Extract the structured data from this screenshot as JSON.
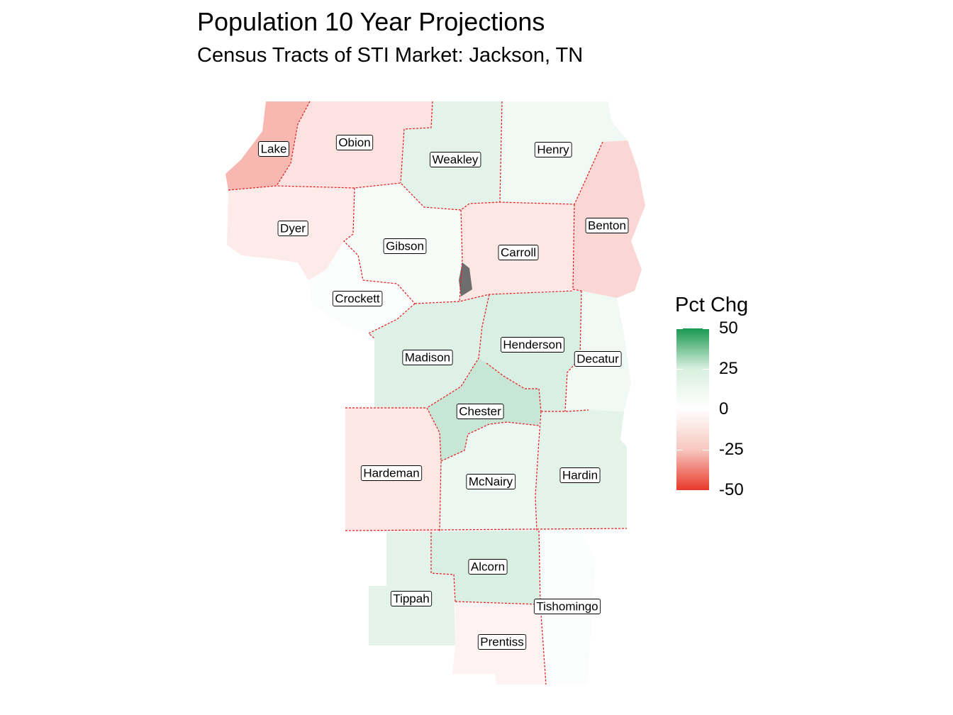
{
  "title": "Population 10 Year Projections",
  "subtitle": "Census Tracts of STI Market: Jackson, TN",
  "legend": {
    "title": "Pct Chg",
    "ticks": [
      "50",
      "25",
      "0",
      "-25",
      "-50"
    ],
    "range": [
      -50,
      50
    ],
    "colors": {
      "high": "#1a9850",
      "mid": "#ffffff",
      "low": "#e8392a"
    }
  },
  "county_border_color": "#e41a1c",
  "no_data_color": "#6e6e6e",
  "counties": [
    {
      "name": "Lake",
      "pct_chg": -18
    },
    {
      "name": "Obion",
      "pct_chg": -7
    },
    {
      "name": "Weakley",
      "pct_chg": 6
    },
    {
      "name": "Henry",
      "pct_chg": 3
    },
    {
      "name": "Dyer",
      "pct_chg": -5
    },
    {
      "name": "Gibson",
      "pct_chg": 2
    },
    {
      "name": "Carroll",
      "pct_chg": -6
    },
    {
      "name": "Benton",
      "pct_chg": -10
    },
    {
      "name": "Crockett",
      "pct_chg": 1
    },
    {
      "name": "Madison",
      "pct_chg": 7
    },
    {
      "name": "Henderson",
      "pct_chg": 8
    },
    {
      "name": "Decatur",
      "pct_chg": 3
    },
    {
      "name": "Chester",
      "pct_chg": 12
    },
    {
      "name": "Hardeman",
      "pct_chg": -6
    },
    {
      "name": "McNairy",
      "pct_chg": 4
    },
    {
      "name": "Hardin",
      "pct_chg": 6
    },
    {
      "name": "Alcorn",
      "pct_chg": 8
    },
    {
      "name": "Tippah",
      "pct_chg": 6
    },
    {
      "name": "Tishomingo",
      "pct_chg": 1
    },
    {
      "name": "Prentiss",
      "pct_chg": -3
    }
  ]
}
